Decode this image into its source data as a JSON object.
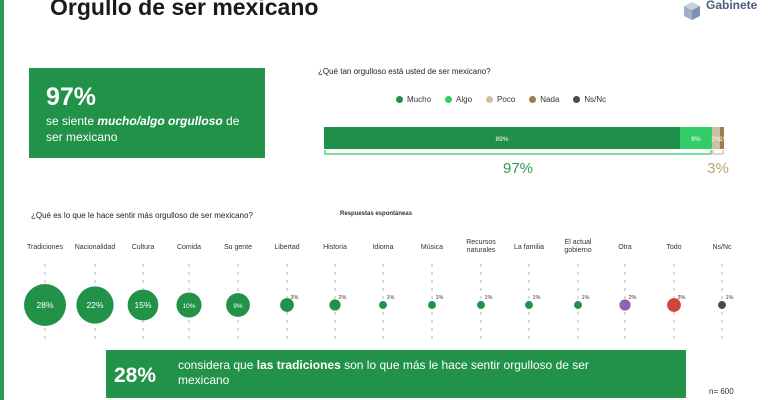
{
  "title": "Orgullo de ser mexicano",
  "logo": {
    "name": "Gabinete",
    "icon": "cube-logo-icon"
  },
  "kpi": {
    "value": "97%",
    "text_before": "se siente ",
    "text_bold": "mucho/algo orgulloso",
    "text_after": " de ser mexicano"
  },
  "callout": {
    "value": "28%",
    "text_before": "considera que ",
    "text_bold": "las tradiciones",
    "text_after": " son lo que más le hace sentir orgulloso de ser mexicano"
  },
  "sample": "n= 600",
  "colors": {
    "accent": "#229249",
    "mucho": "#1f8f49",
    "algo": "#33cc66",
    "poco": "#cdbfa6",
    "nada": "#a07c50",
    "nsnc": "#4a4a4a",
    "otra": "#8e63b0",
    "todo": "#d0453e"
  },
  "chart_data": [
    {
      "type": "bar",
      "title": "¿Qué tan orgulloso está usted de ser mexicano?",
      "orientation": "horizontal-stacked",
      "series": [
        {
          "name": "Mucho",
          "label": "89%",
          "value": 89
        },
        {
          "name": "Algo",
          "label": "8%",
          "value": 8
        },
        {
          "name": "Poco",
          "label": "2%",
          "value": 2
        },
        {
          "name": "Nada",
          "label": "1%",
          "value": 1
        },
        {
          "name": "Ns/Nc",
          "label": "",
          "value": 0
        }
      ],
      "groups": [
        {
          "label": "97%",
          "sum_of": [
            "Mucho",
            "Algo"
          ]
        },
        {
          "label": "3%",
          "sum_of": [
            "Poco",
            "Nada"
          ]
        }
      ],
      "legend_position": "top"
    },
    {
      "type": "scatter",
      "title": "¿Qué es lo que le hace sentir más orgulloso de ser mexicano?",
      "note": "Respuestas espontáneas",
      "categories": [
        "Tradiciones",
        "Nacionalidad",
        "Cultura",
        "Comida",
        "Su gente",
        "Libertad",
        "Historia",
        "Idioma",
        "Música",
        "Recursos naturales",
        "La familia",
        "El actual gobierno",
        "Otra",
        "Todo",
        "Ns/Nc"
      ],
      "values": [
        28,
        22,
        15,
        10,
        9,
        3,
        2,
        1,
        1,
        1,
        1,
        1,
        2,
        3,
        1
      ],
      "labels": [
        "28%",
        "22%",
        "15%",
        "10%",
        "9%",
        "3%",
        "2%",
        "1%",
        "1%",
        "1%",
        "1%",
        "1%",
        "2%",
        "3%",
        "1%"
      ],
      "encoding": "bubble size"
    }
  ]
}
